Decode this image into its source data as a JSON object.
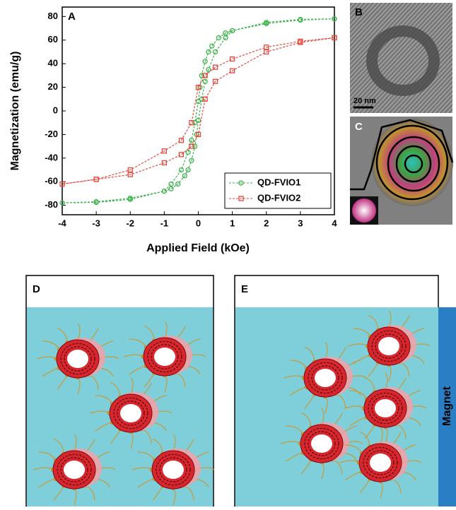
{
  "chart_data": {
    "type": "line",
    "panel_label": "A",
    "x_label": "Applied Field (kOe)",
    "y_label": "Magnetization (emu/g)",
    "xlim": [
      -4,
      4
    ],
    "xticks": [
      -4,
      -3,
      -2,
      -1,
      0,
      1,
      2,
      3,
      4
    ],
    "ylim": [
      -88,
      88
    ],
    "yticks": [
      -80,
      -60,
      -40,
      -20,
      0,
      20,
      40,
      60,
      80
    ],
    "legend": "lower right",
    "series": [
      {
        "name": "QD-FVIO1",
        "color": "#3cb34a",
        "marker": "circle",
        "x": [
          4,
          3,
          2,
          1,
          0.8,
          0.6,
          0.4,
          0.3,
          0.2,
          0.1,
          0.05,
          0,
          -0.1,
          -0.2,
          -0.3,
          -0.5,
          -0.8,
          -1,
          -2,
          -3,
          -4,
          -3,
          -2,
          -1,
          -0.8,
          -0.6,
          -0.4,
          -0.3,
          -0.2,
          -0.1,
          -0.05,
          0,
          0.1,
          0.2,
          0.3,
          0.5,
          0.8,
          1,
          2,
          3,
          4
        ],
        "values": [
          78,
          77.5,
          75,
          68,
          66,
          62,
          55,
          50,
          42,
          30,
          20,
          8,
          -10,
          -25,
          -35,
          -50,
          -62,
          -68,
          -74,
          -77,
          -78,
          -77.5,
          -75,
          -68,
          -66,
          -62,
          -55,
          -50,
          -42,
          -30,
          -20,
          -8,
          10,
          25,
          35,
          50,
          62,
          68,
          74,
          77,
          78
        ]
      },
      {
        "name": "QD-FVIO2",
        "color": "#e8463c",
        "marker": "square",
        "x": [
          4,
          3,
          2,
          1,
          0.5,
          0.2,
          0,
          -0.2,
          -0.5,
          -1,
          -2,
          -3,
          -4,
          -3,
          -2,
          -1,
          -0.5,
          -0.2,
          0,
          0.2,
          0.5,
          1,
          2,
          3,
          4
        ],
        "values": [
          62,
          59,
          54,
          44,
          37,
          30,
          20,
          -10,
          -25,
          -34,
          -50,
          -58,
          -62,
          -58,
          -54,
          -44,
          -37,
          -30,
          -20,
          10,
          25,
          34,
          50,
          58,
          62
        ]
      }
    ]
  },
  "panels": {
    "b": {
      "label": "B",
      "scale_bar": "20 nm"
    },
    "c": {
      "label": "C"
    },
    "d": {
      "label": "D"
    },
    "e": {
      "label": "E",
      "magnet": "Magnet"
    }
  }
}
